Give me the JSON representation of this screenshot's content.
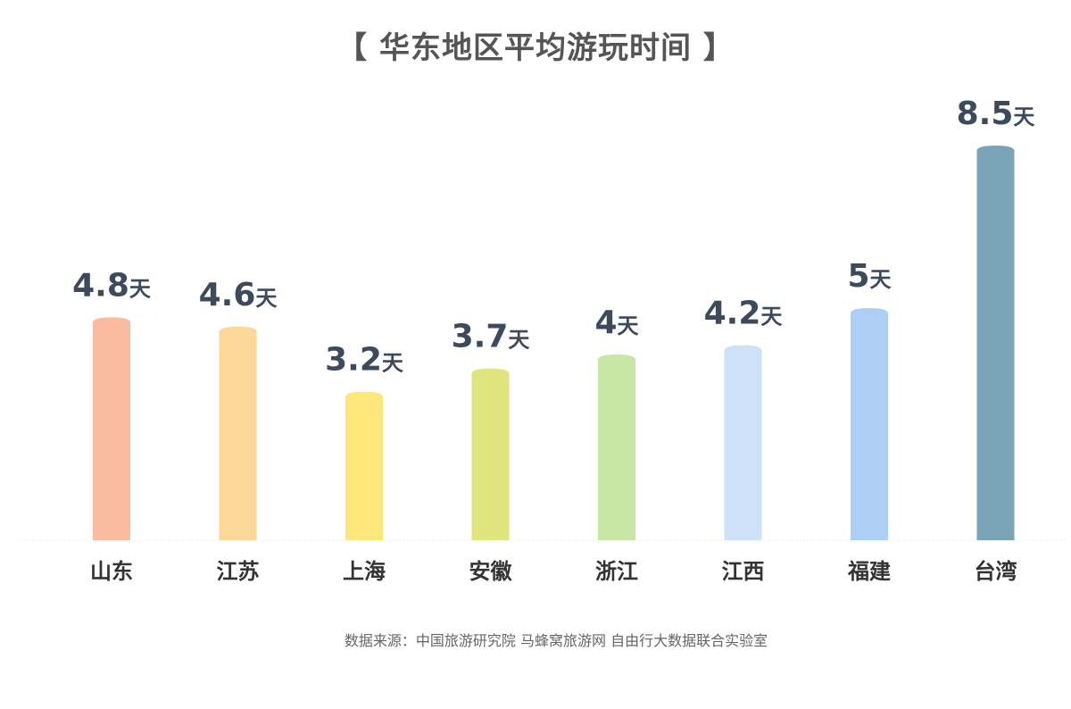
{
  "chart_data": {
    "type": "bar",
    "title": "【 华东地区平均游玩时间 】",
    "categories": [
      "山东",
      "江苏",
      "上海",
      "安徽",
      "浙江",
      "江西",
      "福建",
      "台湾"
    ],
    "values": [
      4.8,
      4.6,
      3.2,
      3.7,
      4,
      4.2,
      5,
      8.5
    ],
    "value_labels": [
      "4.8",
      "4.6",
      "3.2",
      "3.7",
      "4",
      "4.2",
      "5",
      "8.5"
    ],
    "unit": "天",
    "colors": [
      "#fbbba0",
      "#fbd898",
      "#fde77a",
      "#dfe57c",
      "#c8e6a6",
      "#cde2f8",
      "#aecff5",
      "#7aa3b8"
    ],
    "xlabel": "",
    "ylabel": "",
    "grid": false,
    "legend": "none"
  },
  "source": "数据来源：中国旅游研究院 马蜂窝旅游网 自由行大数据联合实验室"
}
